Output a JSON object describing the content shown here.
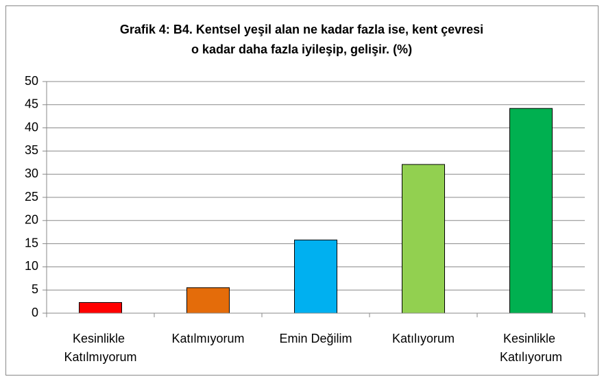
{
  "chart_data": {
    "type": "bar",
    "title": [
      "Grafik 4: B4. Kentsel yeşil alan ne kadar fazla ise, kent çevresi",
      "o kadar daha fazla iyileşip, gelişir. (%)"
    ],
    "categories": [
      "Kesinlikle Katılmıyorum",
      "Katılmıyorum",
      "Emin Değilim",
      "Katılıyorum",
      "Kesinlikle Katılıyorum"
    ],
    "values": [
      2.3,
      5.5,
      15.8,
      32.1,
      44.2
    ],
    "colors": [
      "#ff0000",
      "#e46c0a",
      "#00b0f0",
      "#92d050",
      "#00b050"
    ],
    "ylim": [
      0,
      50
    ],
    "yticks": [
      0,
      5,
      10,
      15,
      20,
      25,
      30,
      35,
      40,
      45,
      50
    ],
    "grid": true
  }
}
